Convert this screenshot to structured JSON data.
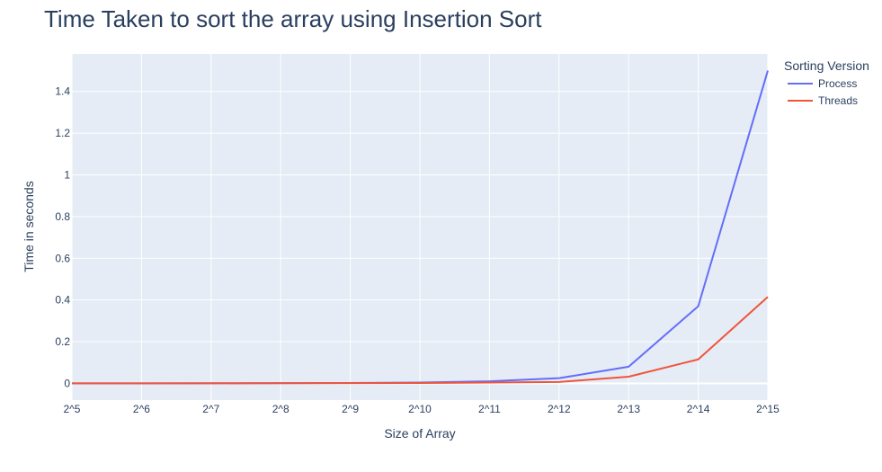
{
  "chart_data": {
    "type": "line",
    "title": "Time Taken to sort the array using Insertion Sort",
    "xlabel": "Size of Array",
    "ylabel": "Time in seconds",
    "categories": [
      "2^5",
      "2^6",
      "2^7",
      "2^8",
      "2^9",
      "2^10",
      "2^11",
      "2^12",
      "2^13",
      "2^14",
      "2^15"
    ],
    "ylim": [
      -0.08,
      1.58
    ],
    "yticks": [
      0,
      0.2,
      0.4,
      0.6,
      0.8,
      1,
      1.2,
      1.4
    ],
    "ytick_labels": [
      "0",
      "0.2",
      "0.4",
      "0.6",
      "0.8",
      "1",
      "1.2",
      "1.4"
    ],
    "grid": true,
    "legend": {
      "title": "Sorting Version",
      "position": "top-right"
    },
    "series": [
      {
        "name": "Process",
        "color": "#636efa",
        "values": [
          0.0003,
          0.0005,
          0.0008,
          0.0012,
          0.002,
          0.004,
          0.01,
          0.025,
          0.08,
          0.37,
          1.5
        ]
      },
      {
        "name": "Threads",
        "color": "#ef553b",
        "values": [
          0.0002,
          0.0003,
          0.0005,
          0.0008,
          0.0012,
          0.002,
          0.004,
          0.007,
          0.032,
          0.115,
          0.415
        ]
      }
    ]
  }
}
